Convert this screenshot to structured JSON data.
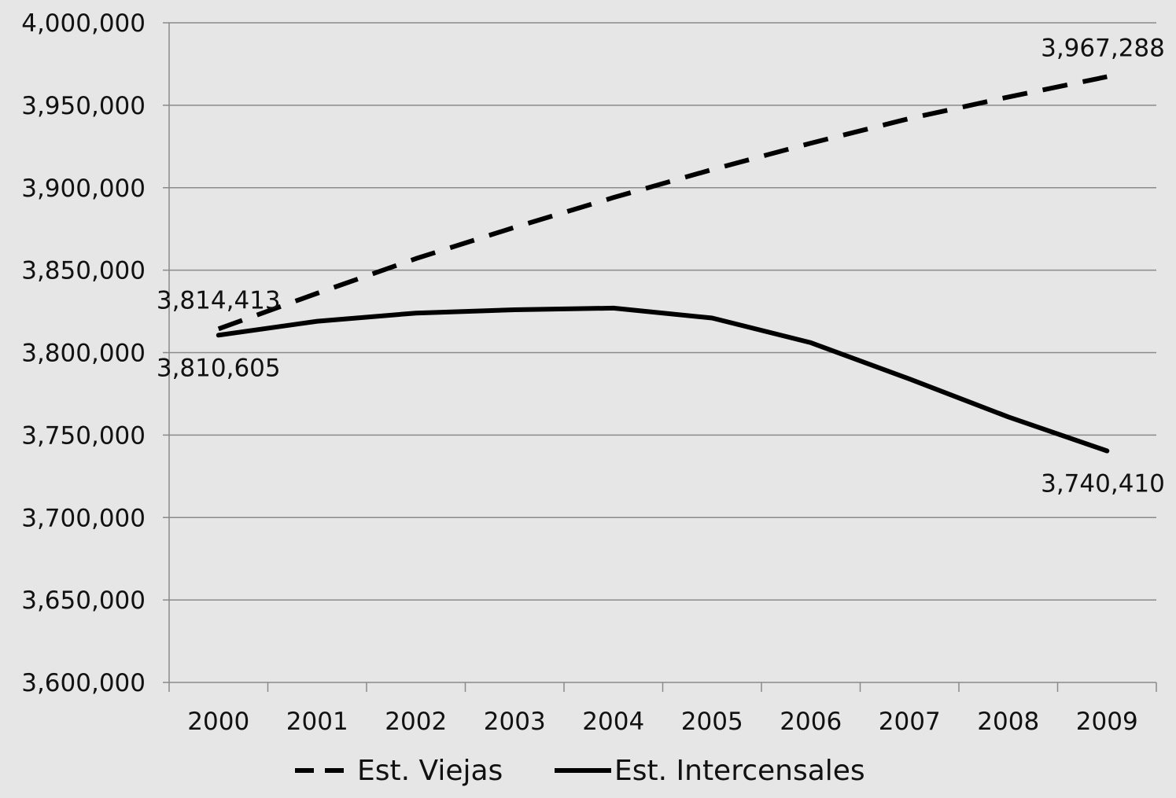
{
  "chart_data": {
    "type": "line",
    "title": "",
    "xlabel": "",
    "ylabel": "",
    "categories": [
      "2000",
      "2001",
      "2002",
      "2003",
      "2004",
      "2005",
      "2006",
      "2007",
      "2008",
      "2009"
    ],
    "ylim": [
      3600000,
      4000000
    ],
    "yticks": [
      3600000,
      3650000,
      3700000,
      3750000,
      3800000,
      3850000,
      3900000,
      3950000,
      4000000
    ],
    "ytick_labels": [
      "3,600,000",
      "3,650,000",
      "3,700,000",
      "3,750,000",
      "3,800,000",
      "3,850,000",
      "3,900,000",
      "3,950,000",
      "4,000,000"
    ],
    "grid": true,
    "legend_position": "bottom",
    "series": [
      {
        "name": "Est. Viejas",
        "style": "dashed",
        "color": "#000000",
        "values": [
          3814413,
          3836000,
          3857000,
          3876000,
          3894000,
          3911000,
          3927000,
          3942000,
          3955000,
          3967288
        ]
      },
      {
        "name": "Est. Intercensales",
        "style": "solid",
        "color": "#000000",
        "values": [
          3810605,
          3819000,
          3824000,
          3826000,
          3827000,
          3821000,
          3806000,
          3784000,
          3761000,
          3740410
        ]
      }
    ],
    "data_labels": [
      {
        "series": 0,
        "index": 0,
        "text": "3,814,413",
        "placement": "above"
      },
      {
        "series": 0,
        "index": 9,
        "text": "3,967,288",
        "placement": "above"
      },
      {
        "series": 1,
        "index": 0,
        "text": "3,810,605",
        "placement": "below"
      },
      {
        "series": 1,
        "index": 9,
        "text": "3,740,410",
        "placement": "below"
      }
    ]
  }
}
